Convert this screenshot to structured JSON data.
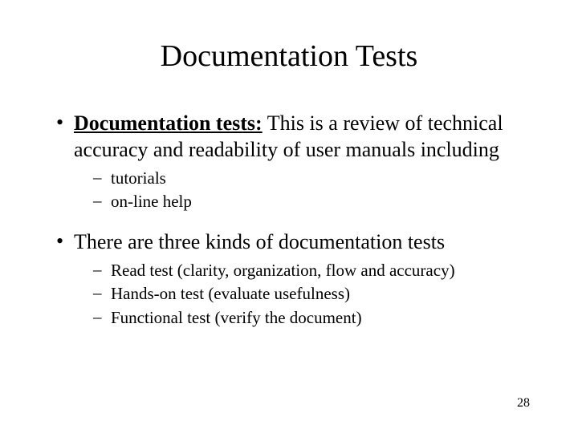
{
  "title": "Documentation Tests",
  "bullets": [
    {
      "level": 1,
      "lead_bold_underline": "Documentation tests:",
      "text_after": " This is a review of technical accuracy and readability of user manuals including"
    },
    {
      "level": 2,
      "text": "tutorials"
    },
    {
      "level": 2,
      "text": "on-line help"
    },
    {
      "level": 1,
      "text": "There are three kinds of documentation tests"
    },
    {
      "level": 2,
      "text": "Read test (clarity, organization, flow and accuracy)"
    },
    {
      "level": 2,
      "text": "Hands-on test (evaluate usefulness)"
    },
    {
      "level": 2,
      "text": "Functional test (verify the document)"
    }
  ],
  "page_number": "28",
  "style": {
    "background_color": "#ffffff",
    "text_color": "#000000",
    "title_fontsize": 38,
    "l1_fontsize": 26,
    "l2_fontsize": 21,
    "pagenum_fontsize": 16,
    "font_family": "Times New Roman"
  }
}
